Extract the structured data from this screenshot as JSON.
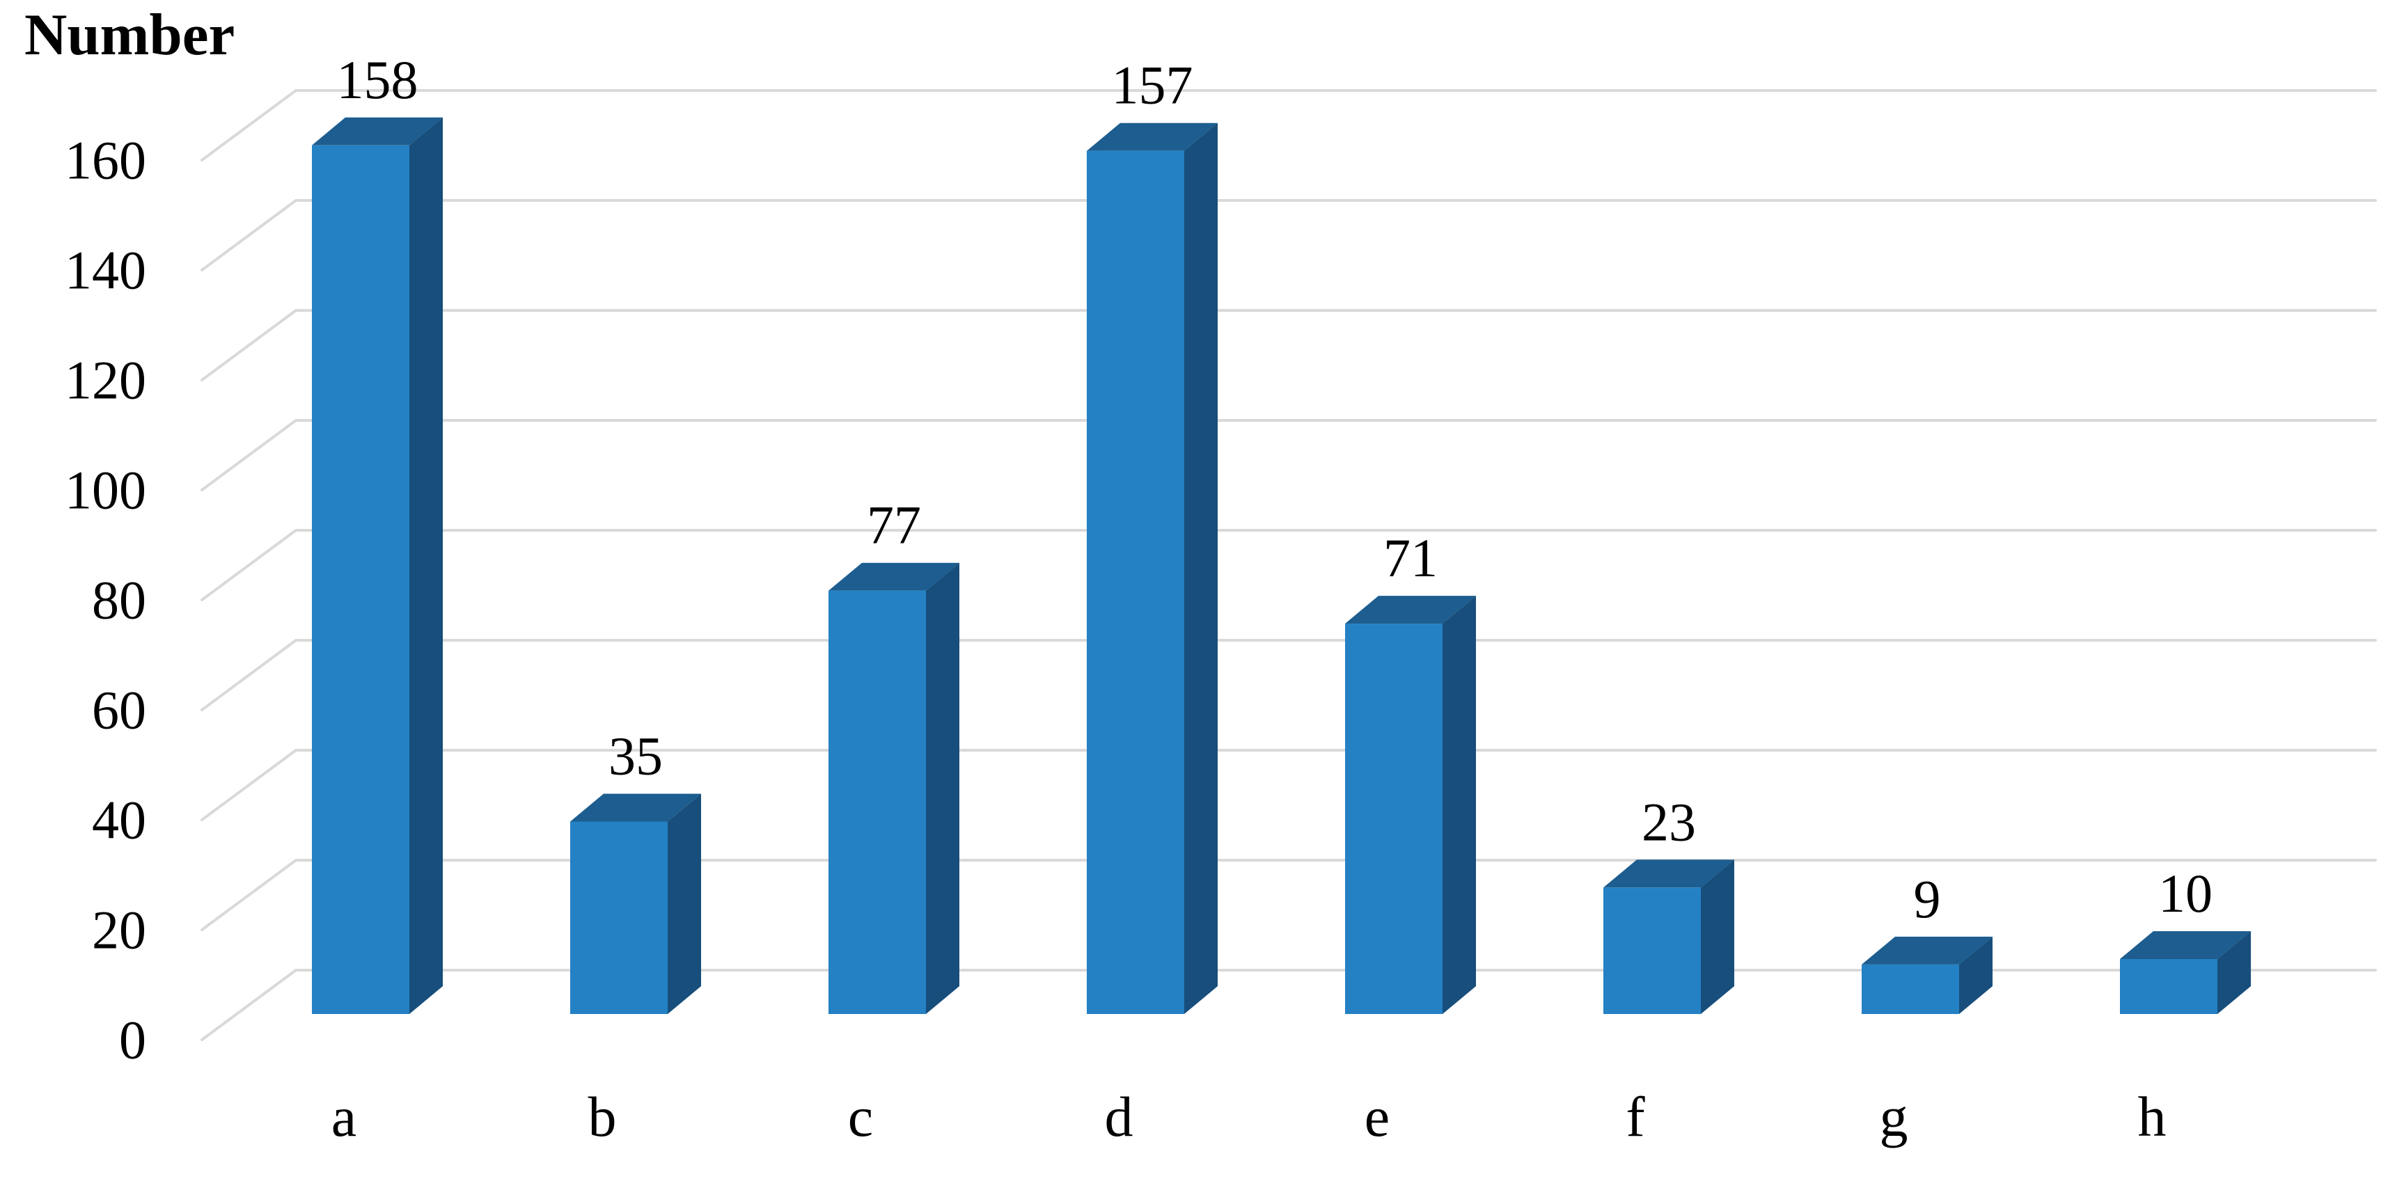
{
  "chart_data": {
    "type": "bar",
    "style": "3d-column",
    "title": "Number",
    "ylabel": "Number",
    "xlabel": "",
    "categories": [
      "a",
      "b",
      "c",
      "d",
      "e",
      "f",
      "g",
      "h"
    ],
    "values": [
      158,
      35,
      77,
      157,
      71,
      23,
      9,
      10
    ],
    "data_labels": [
      "158",
      "35",
      "77",
      "157",
      "71",
      "23",
      "9",
      "10"
    ],
    "yticks": [
      0,
      20,
      40,
      60,
      80,
      100,
      120,
      140,
      160
    ],
    "ylim": [
      0,
      160
    ],
    "ytick_step": 20,
    "grid": true,
    "legend_position": "none",
    "colors": {
      "bar_front": "#2481C4",
      "bar_top": "#1D5D8F",
      "bar_side": "#174E7B",
      "gridline": "#D9D9D9",
      "text": "#000000",
      "background": "#FFFFFF"
    }
  }
}
